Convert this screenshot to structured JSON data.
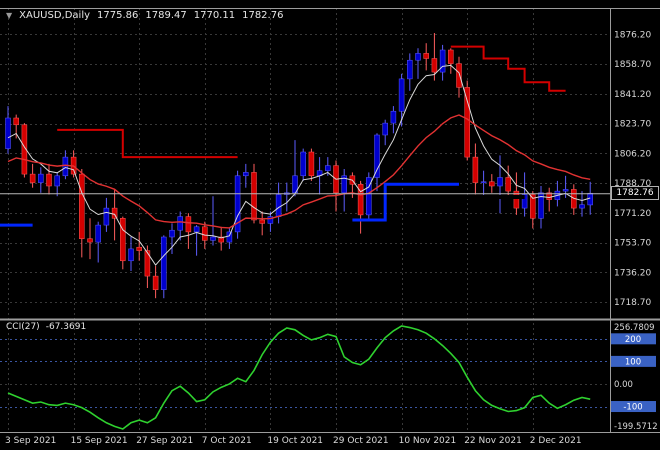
{
  "header": {
    "collapse_icon": "▼",
    "symbol": "XAUUSD,Daily",
    "open": "1775.86",
    "high": "1789.47",
    "low": "1770.11",
    "close": "1782.76"
  },
  "indicator_header": {
    "name": "CCI(27)",
    "value": "-67.3691"
  },
  "price_axis": {
    "ticks": [
      "1876.20",
      "1858.70",
      "1841.20",
      "1823.70",
      "1806.20",
      "1788.70",
      "1771.20",
      "1753.70",
      "1736.20",
      "1718.70"
    ],
    "current": "1782.76"
  },
  "cci_axis": {
    "max_label": "256.7809",
    "zero_label": "0.00",
    "min_label": "-199.5712",
    "level_boxes": [
      "200",
      "100",
      "-100"
    ]
  },
  "time_axis": [
    {
      "label": "3 Sep 2021",
      "bar": 0
    },
    {
      "label": "15 Sep 2021",
      "bar": 8
    },
    {
      "label": "27 Sep 2021",
      "bar": 16
    },
    {
      "label": "7 Oct 2021",
      "bar": 24
    },
    {
      "label": "19 Oct 2021",
      "bar": 32
    },
    {
      "label": "29 Oct 2021",
      "bar": 40
    },
    {
      "label": "10 Nov 2021",
      "bar": 48
    },
    {
      "label": "22 Nov 2021",
      "bar": 56
    },
    {
      "label": "2 Dec 2021",
      "bar": 64
    }
  ],
  "colors": {
    "background": "#000000",
    "grid": "#383838",
    "frame": "#9c9c9c",
    "axis_text": "#d9d9d9",
    "bull": "#0000cd",
    "bull_edge": "#5d5dff",
    "bear": "#d40000",
    "bear_edge": "#ff5d5d",
    "ma_fast": "#d9d9d9",
    "ma_slow": "#e23232",
    "cci": "#2fd12f",
    "level_line": "#3a55a0",
    "level_box": "#3a62c4",
    "price_line": "#b8b8b8",
    "step_blue": "#0026ff",
    "step_red": "#d40000",
    "black_segment": "#000000"
  },
  "chart_data": {
    "type": "candlestick",
    "symbol": "XAUUSD",
    "timeframe": "Daily",
    "ohlc": [
      [
        1809,
        1834,
        1806,
        1827
      ],
      [
        1827,
        1829,
        1815,
        1823
      ],
      [
        1823,
        1824,
        1792,
        1794
      ],
      [
        1794,
        1800,
        1786,
        1789
      ],
      [
        1789,
        1798,
        1783,
        1794
      ],
      [
        1794,
        1800,
        1782,
        1787
      ],
      [
        1787,
        1795,
        1781,
        1793
      ],
      [
        1793,
        1808,
        1791,
        1804
      ],
      [
        1804,
        1808,
        1792,
        1794
      ],
      [
        1794,
        1797,
        1745,
        1756
      ],
      [
        1756,
        1768,
        1744,
        1754
      ],
      [
        1754,
        1766,
        1742,
        1764
      ],
      [
        1764,
        1780,
        1760,
        1774
      ],
      [
        1774,
        1785,
        1755,
        1768
      ],
      [
        1768,
        1769,
        1738,
        1743
      ],
      [
        1743,
        1757,
        1737,
        1750
      ],
      [
        1751,
        1760,
        1743,
        1749
      ],
      [
        1749,
        1752,
        1727,
        1734
      ],
      [
        1734,
        1740,
        1721,
        1726
      ],
      [
        1726,
        1758,
        1721,
        1757
      ],
      [
        1757,
        1765,
        1747,
        1761
      ],
      [
        1761,
        1772,
        1755,
        1769
      ],
      [
        1769,
        1771,
        1750,
        1760
      ],
      [
        1760,
        1764,
        1746,
        1763
      ],
      [
        1763,
        1766,
        1750,
        1755
      ],
      [
        1755,
        1781,
        1752,
        1757
      ],
      [
        1757,
        1763,
        1749,
        1754
      ],
      [
        1754,
        1762,
        1750,
        1760
      ],
      [
        1760,
        1796,
        1756,
        1793
      ],
      [
        1793,
        1800,
        1786,
        1795
      ],
      [
        1795,
        1800,
        1765,
        1767
      ],
      [
        1767,
        1772,
        1758,
        1765
      ],
      [
        1765,
        1772,
        1760,
        1769
      ],
      [
        1769,
        1789,
        1765,
        1782
      ],
      [
        1782,
        1789,
        1772,
        1783
      ],
      [
        1783,
        1814,
        1781,
        1793
      ],
      [
        1793,
        1809,
        1790,
        1807
      ],
      [
        1807,
        1809,
        1790,
        1793
      ],
      [
        1793,
        1804,
        1782,
        1796
      ],
      [
        1796,
        1804,
        1793,
        1799
      ],
      [
        1799,
        1802,
        1772,
        1783
      ],
      [
        1783,
        1797,
        1772,
        1793
      ],
      [
        1793,
        1795,
        1780,
        1788
      ],
      [
        1788,
        1790,
        1759,
        1770
      ],
      [
        1770,
        1795,
        1767,
        1792
      ],
      [
        1792,
        1818,
        1784,
        1817
      ],
      [
        1817,
        1826,
        1811,
        1824
      ],
      [
        1824,
        1834,
        1818,
        1831
      ],
      [
        1831,
        1853,
        1822,
        1850
      ],
      [
        1850,
        1865,
        1843,
        1861
      ],
      [
        1861,
        1868,
        1850,
        1865
      ],
      [
        1865,
        1871,
        1855,
        1862
      ],
      [
        1862,
        1877,
        1849,
        1854
      ],
      [
        1854,
        1870,
        1849,
        1867
      ],
      [
        1867,
        1868,
        1853,
        1859
      ],
      [
        1859,
        1863,
        1839,
        1845
      ],
      [
        1845,
        1849,
        1802,
        1804
      ],
      [
        1804,
        1812,
        1782,
        1789
      ],
      [
        1789,
        1796,
        1781,
        1789.5
      ],
      [
        1789.5,
        1794,
        1783,
        1787
      ],
      [
        1787,
        1805,
        1771,
        1792
      ],
      [
        1792,
        1799,
        1780,
        1784
      ],
      [
        1784,
        1795,
        1770,
        1774
      ],
      [
        1774,
        1795,
        1769,
        1782
      ],
      [
        1782,
        1784,
        1762,
        1768
      ],
      [
        1768,
        1787,
        1762,
        1783
      ],
      [
        1783,
        1786,
        1772,
        1779
      ],
      [
        1779,
        1790,
        1775,
        1784
      ],
      [
        1784,
        1793,
        1780,
        1785
      ],
      [
        1785,
        1788,
        1770,
        1774
      ],
      [
        1774,
        1784,
        1769,
        1776
      ],
      [
        1775.86,
        1789.47,
        1770.11,
        1782.76
      ]
    ],
    "pre_closes": [
      1782,
      1786,
      1789,
      1784,
      1778,
      1784,
      1790,
      1794,
      1798,
      1802,
      1806,
      1802,
      1797,
      1800,
      1804,
      1805,
      1808,
      1812,
      1815
    ],
    "moving_averages": [
      {
        "name": "ema-fast",
        "period": 5,
        "color_key": "ma_fast"
      },
      {
        "name": "ema-slow",
        "period": 20,
        "color_key": "ma_slow"
      }
    ],
    "overlays": {
      "flat_blue_left": {
        "color_key": "step_blue",
        "width": 3,
        "points": [
          [
            -1,
            1764
          ],
          [
            3,
            1764
          ]
        ]
      },
      "step_red_left": {
        "color_key": "step_red",
        "width": 2,
        "points": [
          [
            6,
            1820
          ],
          [
            14,
            1820
          ],
          [
            14,
            1804
          ],
          [
            28,
            1804
          ]
        ]
      },
      "step_blue_mid": {
        "color_key": "step_blue",
        "width": 3,
        "points": [
          [
            42,
            1767
          ],
          [
            46,
            1767
          ],
          [
            46,
            1788
          ],
          [
            55,
            1788
          ]
        ]
      },
      "step_red_right": {
        "color_key": "step_red",
        "width": 2,
        "points": [
          [
            54,
            1869
          ],
          [
            58,
            1869
          ],
          [
            58,
            1862
          ],
          [
            61,
            1862
          ],
          [
            61,
            1856
          ],
          [
            63,
            1856
          ],
          [
            63,
            1848
          ],
          [
            66,
            1848
          ],
          [
            66,
            1843
          ],
          [
            68,
            1843
          ]
        ]
      },
      "black_segment": {
        "color_key": "black_segment",
        "width": 4,
        "points": [
          [
            55,
            1780.5
          ],
          [
            63,
            1780.5
          ]
        ]
      }
    },
    "current_price": 1782.76,
    "price_axis_range": [
      1718.7,
      1876.2
    ],
    "indicator_panel": {
      "type": "line",
      "name": "CCI",
      "period": 27,
      "current": -67.3691,
      "levels": [
        200,
        100,
        -100
      ],
      "extremes": {
        "max": 256.7809,
        "min": -199.5712
      },
      "values": [
        -40,
        -55,
        -70,
        -85,
        -80,
        -92,
        -95,
        -85,
        -92,
        -105,
        -125,
        -150,
        -172,
        -188,
        -199.5712,
        -172,
        -160,
        -172,
        -150,
        -85,
        -30,
        -10,
        -40,
        -78,
        -70,
        -35,
        -15,
        0,
        25,
        10,
        60,
        130,
        185,
        225,
        248,
        240,
        215,
        195,
        205,
        220,
        210,
        120,
        95,
        85,
        110,
        160,
        205,
        235,
        256.7809,
        250,
        240,
        225,
        200,
        170,
        135,
        95,
        30,
        -30,
        -70,
        -95,
        -110,
        -122,
        -118,
        -105,
        -60,
        -50,
        -85,
        -108,
        -92,
        -72,
        -60,
        -67.3691
      ]
    }
  }
}
